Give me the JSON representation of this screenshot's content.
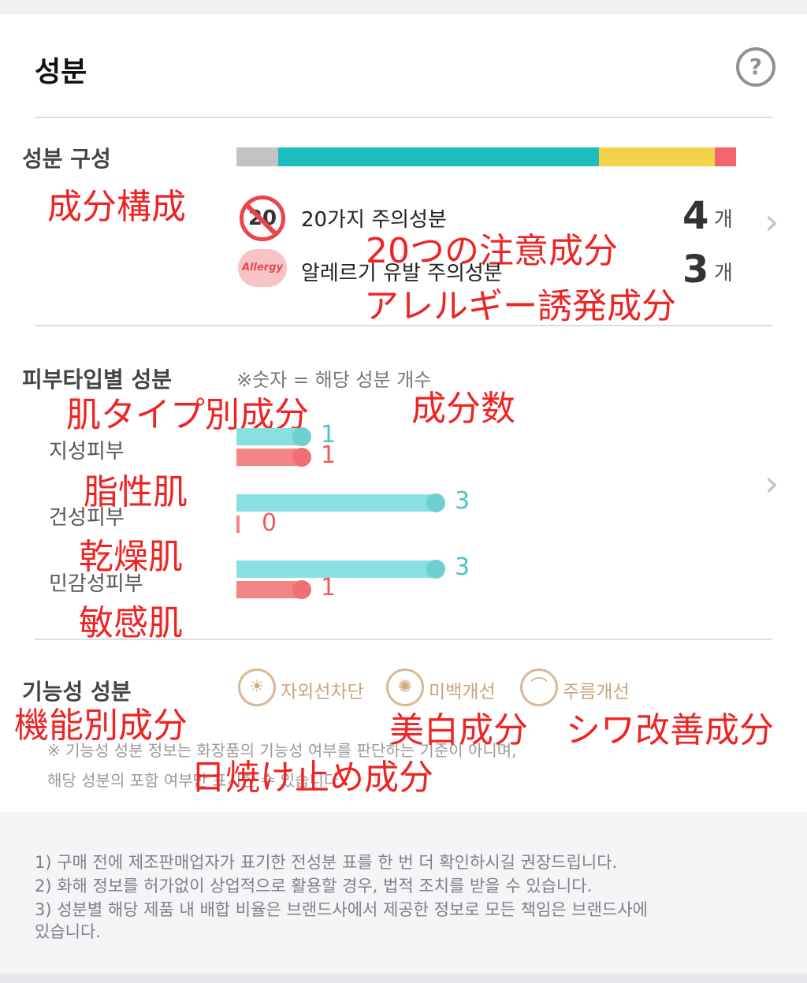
{
  "header": {
    "title": "성분",
    "help_icon": "?"
  },
  "composition": {
    "label": "성분 구성",
    "label_jp": "成分構成",
    "segments": [
      {
        "color": "#c2c2c2",
        "fraction": 0.083
      },
      {
        "color": "#1fbdbd",
        "fraction": 0.642
      },
      {
        "color": "#f3d34a",
        "fraction": 0.233
      },
      {
        "color": "#f2656a",
        "fraction": 0.042
      }
    ],
    "rows": [
      {
        "icon": "20",
        "label": "20가지 주의성분",
        "label_jp": "20つの注意成分",
        "count": "4",
        "unit": "개"
      },
      {
        "icon": "Allergy",
        "label": "알레르기 유발 주의성분",
        "label_jp": "アレルギー誘発成分",
        "count": "3",
        "unit": "개"
      }
    ]
  },
  "skin": {
    "label": "피부타입별 성분",
    "label_jp": "肌タイプ別成分",
    "note": "※숫자 = 해당 성분 개수",
    "note_jp": "成分数",
    "max": 3,
    "types": [
      {
        "label": "지성피부",
        "label_jp": "脂性肌",
        "good": "1",
        "bad": "1"
      },
      {
        "label": "건성피부",
        "label_jp": "乾燥肌",
        "good": "3",
        "bad": "0"
      },
      {
        "label": "민감성피부",
        "label_jp": "敏感肌",
        "good": "3",
        "bad": "1"
      }
    ]
  },
  "functional": {
    "label": "기능성 성분",
    "label_jp": "機能別成分",
    "items": [
      {
        "icon": "sun-icon",
        "glyph": "☀",
        "label": "자외선차단"
      },
      {
        "icon": "bulb-icon",
        "glyph": "✺",
        "label": "미백개선"
      },
      {
        "icon": "iron-icon",
        "glyph": "⌒",
        "label": "주름개선"
      }
    ],
    "jp_tags": [
      "美白成分",
      "シワ改善成分",
      "日焼け止め成分"
    ],
    "disclaimer_1": "※ 기능성 성분 정보는 화장품의 기능성 여부를 판단하는 기준이 아니며,",
    "disclaimer_2": "해당 성분의 포함 여부만 표시한 수 있습니다"
  },
  "notes": [
    "1) 구매 전에 제조판매업자가 표기한 전성분 표를 한 번 더 확인하시길 권장드립니다.",
    "2) 화해 정보를 허가없이 상업적으로 활용할 경우, 법적 조치를 받을 수 있습니다.",
    "3) 성분별 해당 제품 내 배합 비율은 브랜드사에서 제공한 정보로 모든 책임은 브랜드사에",
    "있습니다."
  ]
}
